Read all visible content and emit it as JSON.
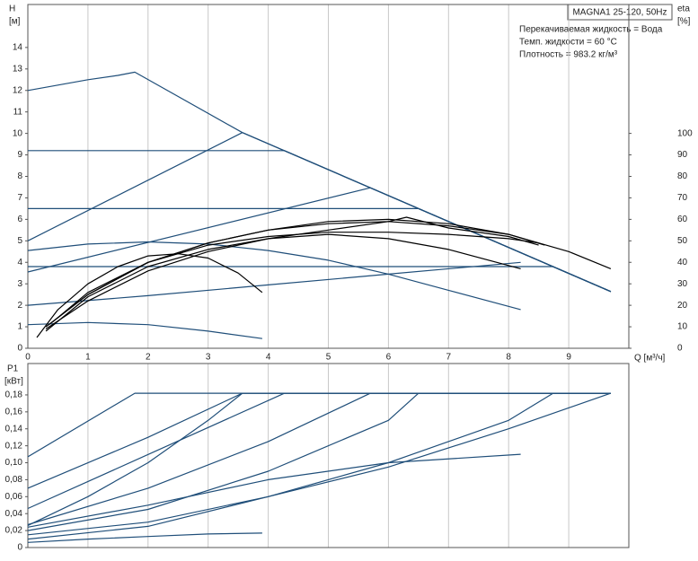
{
  "chart_data": [
    {
      "type": "line",
      "title": "MAGNA1 25-120, 50Hz",
      "annotations": [
        "Перекачиваемая жидкость = Вода",
        "Темп. жидкости = 60 °C",
        "Плотность = 983.2 кг/м³"
      ],
      "y_label": "H",
      "y_unit": "[м]",
      "y2_label": "eta",
      "y2_unit": "[%]",
      "x_label": "Q [м³/ч]",
      "xlim": [
        0,
        10
      ],
      "xticks": [
        0,
        1,
        2,
        3,
        4,
        5,
        6,
        7,
        8,
        9
      ],
      "ylim": [
        0,
        16
      ],
      "yticks": [
        0,
        1,
        2,
        3,
        4,
        5,
        6,
        7,
        8,
        9,
        10,
        11,
        12,
        13,
        14
      ],
      "y2lim": [
        0,
        160
      ],
      "y2ticks": [
        0,
        10,
        20,
        30,
        40,
        50,
        60,
        70,
        80,
        90,
        100
      ],
      "grid": true,
      "series": [
        {
          "color": "#1f4e79",
          "x": [
            0,
            0.5,
            1,
            1.5,
            1.78,
            3.57,
            5,
            6,
            7,
            8,
            9,
            9.7
          ],
          "values": [
            12,
            12.25,
            12.5,
            12.7,
            12.85,
            10.04,
            8.31,
            7.1,
            5.9,
            4.69,
            3.48,
            2.64
          ]
        },
        {
          "color": "#1f4e79",
          "x": [
            0,
            3.57,
            9.7
          ],
          "values": [
            5,
            10.04,
            2.64
          ]
        },
        {
          "color": "#1f4e79",
          "x": [
            0,
            4.27,
            9.7
          ],
          "values": [
            9.2,
            9.2,
            2.64
          ]
        },
        {
          "color": "#1f4e79",
          "x": [
            0,
            6.5,
            9.7
          ],
          "values": [
            6.5,
            6.5,
            2.64
          ]
        },
        {
          "color": "#1f4e79",
          "x": [
            0,
            5.7,
            9.7
          ],
          "values": [
            3.55,
            7.47,
            2.64
          ]
        },
        {
          "color": "#1f4e79",
          "x": [
            0,
            8.74,
            9.7
          ],
          "values": [
            3.8,
            3.8,
            2.64
          ]
        },
        {
          "color": "#1f4e79",
          "x": [
            0,
            2,
            4,
            6,
            8.2
          ],
          "values": [
            2.0,
            2.45,
            2.95,
            3.45,
            4.0
          ]
        },
        {
          "color": "#1f4e79",
          "x": [
            0,
            1,
            2,
            3,
            4,
            5,
            6,
            7,
            8.2
          ],
          "values": [
            4.55,
            4.85,
            4.95,
            4.85,
            4.55,
            4.1,
            3.45,
            2.7,
            1.8
          ]
        },
        {
          "color": "#1f4e79",
          "x": [
            0,
            1,
            2,
            3,
            3.9
          ],
          "values": [
            1.1,
            1.2,
            1.1,
            0.8,
            0.45
          ]
        },
        {
          "color": "#000000",
          "axis": "y2",
          "x": [
            0.15,
            0.5,
            1,
            1.5,
            2,
            2.5,
            3,
            3.5,
            3.9
          ],
          "values": [
            5,
            18,
            30,
            38,
            43,
            44,
            42,
            35,
            26
          ]
        },
        {
          "color": "#000000",
          "axis": "y2",
          "x": [
            0.3,
            1,
            2,
            3,
            4,
            5,
            6,
            7,
            8.2
          ],
          "values": [
            8,
            24,
            38,
            46,
            51,
            53,
            51,
            46,
            37
          ]
        },
        {
          "color": "#000000",
          "axis": "y2",
          "x": [
            0.3,
            1,
            2,
            3,
            4,
            5,
            6,
            7,
            8,
            8.6
          ],
          "values": [
            10,
            25,
            40,
            49,
            55,
            58,
            59,
            57,
            53,
            48
          ]
        },
        {
          "color": "#000000",
          "axis": "y2",
          "x": [
            0.4,
            1,
            2,
            3,
            4,
            5,
            6,
            7,
            8,
            9,
            9.7
          ],
          "values": [
            12,
            26,
            40,
            49,
            55,
            59,
            60,
            58,
            53,
            45,
            37
          ]
        },
        {
          "color": "#000000",
          "axis": "y2",
          "x": [
            0.35,
            1,
            2,
            3,
            4,
            5,
            6,
            7,
            8,
            8.5
          ],
          "values": [
            11,
            25,
            40,
            48,
            52,
            54,
            54,
            53,
            51,
            49
          ]
        },
        {
          "color": "#000000",
          "axis": "y2",
          "x": [
            0.3,
            1,
            2,
            3,
            4,
            5,
            6,
            6.3,
            7,
            8,
            8.5
          ],
          "values": [
            9,
            22,
            36,
            45,
            51,
            55,
            59,
            61,
            56,
            52,
            48
          ]
        }
      ]
    },
    {
      "type": "line",
      "y_label": "P1",
      "y_unit": "[кВт]",
      "xlim": [
        0,
        10
      ],
      "ylim": [
        0,
        0.217
      ],
      "yticks": [
        0,
        {
          "value": 0.02,
          "label": "0,02"
        },
        {
          "value": 0.04,
          "label": "0,04"
        },
        {
          "value": 0.06,
          "label": "0,06"
        },
        {
          "value": 0.08,
          "label": "0,08"
        },
        {
          "value": 0.1,
          "label": "0,10"
        },
        {
          "value": 0.12,
          "label": "0,12"
        },
        {
          "value": 0.14,
          "label": "0,14"
        },
        {
          "value": 0.16,
          "label": "0,16"
        },
        {
          "value": 0.18,
          "label": "0,18"
        }
      ],
      "grid": true,
      "series": [
        {
          "color": "#1f4e79",
          "x": [
            0,
            1.78,
            9.7
          ],
          "values": [
            0.107,
            0.182,
            0.182
          ]
        },
        {
          "color": "#1f4e79",
          "x": [
            0,
            2,
            3.57,
            9.7
          ],
          "values": [
            0.07,
            0.13,
            0.182,
            0.182
          ]
        },
        {
          "color": "#1f4e79",
          "x": [
            0,
            4.27,
            9.7
          ],
          "values": [
            0.046,
            0.182,
            0.182
          ]
        },
        {
          "color": "#1f4e79",
          "x": [
            0,
            1,
            2,
            3,
            3.57,
            9.7
          ],
          "values": [
            0.026,
            0.06,
            0.1,
            0.15,
            0.182,
            0.182
          ]
        },
        {
          "color": "#1f4e79",
          "x": [
            0,
            2,
            4,
            5.7,
            9.7
          ],
          "values": [
            0.027,
            0.07,
            0.125,
            0.182,
            0.182
          ]
        },
        {
          "color": "#1f4e79",
          "x": [
            0,
            2,
            4,
            6,
            6.5,
            9.7
          ],
          "values": [
            0.02,
            0.045,
            0.09,
            0.15,
            0.182,
            0.182
          ]
        },
        {
          "color": "#1f4e79",
          "x": [
            0,
            2,
            4,
            6,
            8,
            8.74,
            9.7
          ],
          "values": [
            0.015,
            0.03,
            0.06,
            0.1,
            0.15,
            0.182,
            0.182
          ]
        },
        {
          "color": "#1f4e79",
          "x": [
            0,
            2,
            4,
            6,
            8.2
          ],
          "values": [
            0.024,
            0.05,
            0.08,
            0.1,
            0.11
          ]
        },
        {
          "color": "#1f4e79",
          "x": [
            0,
            2,
            4,
            6,
            8,
            9.7
          ],
          "values": [
            0.01,
            0.025,
            0.06,
            0.095,
            0.14,
            0.182
          ]
        },
        {
          "color": "#1f4e79",
          "x": [
            0,
            1,
            2,
            3,
            3.9
          ],
          "values": [
            0.006,
            0.01,
            0.013,
            0.016,
            0.017
          ]
        }
      ]
    }
  ]
}
